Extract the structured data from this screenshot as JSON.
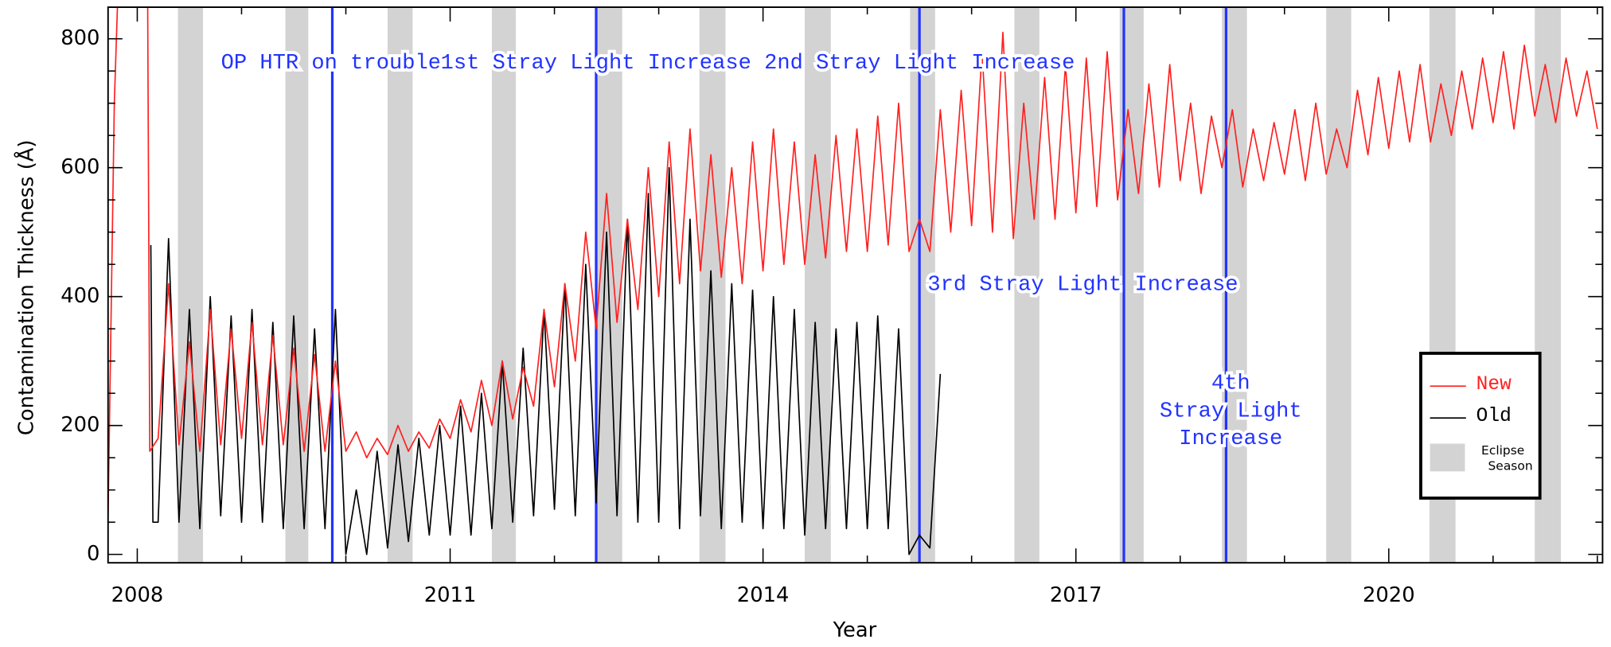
{
  "chart_data": {
    "type": "line",
    "xlabel": "Year",
    "ylabel": "Contamination Thickness (Å)",
    "xlim": [
      2007.72,
      2022.05
    ],
    "ylim": [
      -13,
      849
    ],
    "xticks": [
      2008,
      2011,
      2014,
      2017,
      2020
    ],
    "minor_xticks": [
      2009,
      2010,
      2012,
      2013,
      2015,
      2016,
      2018,
      2019,
      2021,
      2022
    ],
    "yticks": [
      0,
      200,
      400,
      600,
      800
    ],
    "minor_yticks": [
      50,
      100,
      150,
      250,
      300,
      350,
      450,
      500,
      550,
      650,
      700,
      750
    ],
    "bands": {
      "name": [
        "Eclipse",
        "Season"
      ],
      "color": "#d3d3d3",
      "ranges": [
        [
          2008.39,
          2008.63
        ],
        [
          2009.42,
          2009.64
        ],
        [
          2010.4,
          2010.64
        ],
        [
          2011.4,
          2011.63
        ],
        [
          2012.41,
          2012.65
        ],
        [
          2013.39,
          2013.64
        ],
        [
          2014.4,
          2014.65
        ],
        [
          2015.41,
          2015.65
        ],
        [
          2016.41,
          2016.65
        ],
        [
          2017.42,
          2017.65
        ],
        [
          2018.4,
          2018.64
        ],
        [
          2019.4,
          2019.64
        ],
        [
          2020.39,
          2020.64
        ],
        [
          2021.4,
          2021.65
        ]
      ]
    },
    "events": [
      {
        "x": 2009.87,
        "label": [
          "OP HTR on trouble"
        ]
      },
      {
        "x": 2012.4,
        "label": [
          "1st Stray Light Increase"
        ]
      },
      {
        "x": 2015.5,
        "label": [
          "2nd Stray Light Increase"
        ]
      },
      {
        "x": 2017.46,
        "label": [
          "3rd Stray Light Increase"
        ]
      },
      {
        "x": 2018.44,
        "label": [
          "4th",
          "Stray Light",
          "Increase"
        ]
      }
    ],
    "event_color": "#2233ff",
    "series": [
      {
        "name": "New",
        "color": "#ff2020",
        "x": [
          2007.72,
          2007.78,
          2007.81,
          2008.1,
          2008.12,
          2008.2,
          2008.3,
          2008.4,
          2008.5,
          2008.6,
          2008.7,
          2008.8,
          2008.9,
          2009.0,
          2009.1,
          2009.2,
          2009.3,
          2009.4,
          2009.5,
          2009.6,
          2009.7,
          2009.8,
          2009.9,
          2010.0,
          2010.1,
          2010.2,
          2010.3,
          2010.4,
          2010.5,
          2010.6,
          2010.7,
          2010.8,
          2010.9,
          2011.0,
          2011.1,
          2011.2,
          2011.3,
          2011.4,
          2011.5,
          2011.6,
          2011.7,
          2011.8,
          2011.9,
          2012.0,
          2012.1,
          2012.2,
          2012.3,
          2012.4,
          2012.5,
          2012.6,
          2012.7,
          2012.8,
          2012.9,
          2013.0,
          2013.1,
          2013.2,
          2013.3,
          2013.4,
          2013.5,
          2013.6,
          2013.7,
          2013.8,
          2013.9,
          2014.0,
          2014.1,
          2014.2,
          2014.3,
          2014.4,
          2014.5,
          2014.6,
          2014.7,
          2014.8,
          2014.9,
          2015.0,
          2015.1,
          2015.2,
          2015.3,
          2015.4,
          2015.5,
          2015.6,
          2015.7,
          2015.8,
          2015.9,
          2016.0,
          2016.1,
          2016.2,
          2016.3,
          2016.4,
          2016.5,
          2016.6,
          2016.7,
          2016.8,
          2016.9,
          2017.0,
          2017.1,
          2017.2,
          2017.3,
          2017.4,
          2017.5,
          2017.6,
          2017.7,
          2017.8,
          2017.9,
          2018.0,
          2018.1,
          2018.2,
          2018.3,
          2018.4,
          2018.5,
          2018.6,
          2018.7,
          2018.8,
          2018.9,
          2019.0,
          2019.1,
          2019.2,
          2019.3,
          2019.4,
          2019.5,
          2019.6,
          2019.7,
          2019.8,
          2019.9,
          2020.0,
          2020.1,
          2020.2,
          2020.3,
          2020.4,
          2020.5,
          2020.6,
          2020.7,
          2020.8,
          2020.9,
          2021.0,
          2021.1,
          2021.2,
          2021.3,
          2021.4,
          2021.5,
          2021.6,
          2021.7,
          2021.8,
          2021.9,
          2022.0
        ],
        "values": [
          60,
          700,
          850,
          850,
          160,
          180,
          420,
          170,
          330,
          160,
          380,
          170,
          350,
          180,
          360,
          170,
          340,
          170,
          320,
          160,
          310,
          160,
          300,
          160,
          190,
          150,
          180,
          155,
          200,
          160,
          190,
          165,
          210,
          180,
          240,
          190,
          270,
          200,
          300,
          210,
          290,
          230,
          380,
          260,
          420,
          300,
          500,
          350,
          560,
          360,
          520,
          380,
          600,
          400,
          640,
          420,
          660,
          440,
          620,
          430,
          600,
          420,
          640,
          440,
          660,
          450,
          640,
          450,
          620,
          460,
          650,
          470,
          660,
          470,
          680,
          480,
          700,
          470,
          520,
          470,
          690,
          500,
          720,
          510,
          780,
          500,
          810,
          490,
          700,
          520,
          740,
          520,
          760,
          530,
          770,
          540,
          780,
          550,
          690,
          560,
          730,
          570,
          760,
          580,
          700,
          560,
          680,
          600,
          690,
          570,
          660,
          580,
          670,
          590,
          690,
          580,
          700,
          590,
          660,
          600,
          720,
          620,
          740,
          630,
          750,
          640,
          760,
          640,
          730,
          650,
          750,
          660,
          770,
          670,
          780,
          660,
          790,
          680,
          760,
          670,
          770,
          680,
          750,
          660
        ]
      },
      {
        "name": "Old",
        "color": "#000000",
        "x": [
          2008.13,
          2008.15,
          2008.2,
          2008.3,
          2008.4,
          2008.5,
          2008.6,
          2008.7,
          2008.8,
          2008.9,
          2009.0,
          2009.1,
          2009.2,
          2009.3,
          2009.4,
          2009.5,
          2009.6,
          2009.7,
          2009.8,
          2009.9,
          2010.0,
          2010.1,
          2010.2,
          2010.3,
          2010.4,
          2010.5,
          2010.6,
          2010.7,
          2010.8,
          2010.9,
          2011.0,
          2011.1,
          2011.2,
          2011.3,
          2011.4,
          2011.5,
          2011.6,
          2011.7,
          2011.8,
          2011.9,
          2012.0,
          2012.1,
          2012.2,
          2012.3,
          2012.4,
          2012.5,
          2012.6,
          2012.7,
          2012.8,
          2012.9,
          2013.0,
          2013.1,
          2013.2,
          2013.3,
          2013.4,
          2013.5,
          2013.6,
          2013.7,
          2013.8,
          2013.9,
          2014.0,
          2014.1,
          2014.2,
          2014.3,
          2014.4,
          2014.5,
          2014.6,
          2014.7,
          2014.8,
          2014.9,
          2015.0,
          2015.1,
          2015.2,
          2015.3,
          2015.4,
          2015.5,
          2015.6,
          2015.7
        ],
        "values": [
          480,
          50,
          50,
          490,
          50,
          380,
          40,
          400,
          60,
          370,
          50,
          380,
          50,
          360,
          40,
          370,
          40,
          350,
          40,
          380,
          0,
          100,
          0,
          160,
          10,
          170,
          20,
          180,
          30,
          200,
          30,
          230,
          30,
          250,
          40,
          300,
          50,
          320,
          60,
          380,
          70,
          420,
          60,
          450,
          80,
          500,
          60,
          520,
          50,
          560,
          50,
          600,
          40,
          520,
          60,
          440,
          40,
          420,
          50,
          410,
          40,
          400,
          40,
          380,
          30,
          360,
          40,
          350,
          40,
          360,
          40,
          370,
          40,
          350,
          0,
          30,
          10,
          280
        ]
      }
    ]
  }
}
